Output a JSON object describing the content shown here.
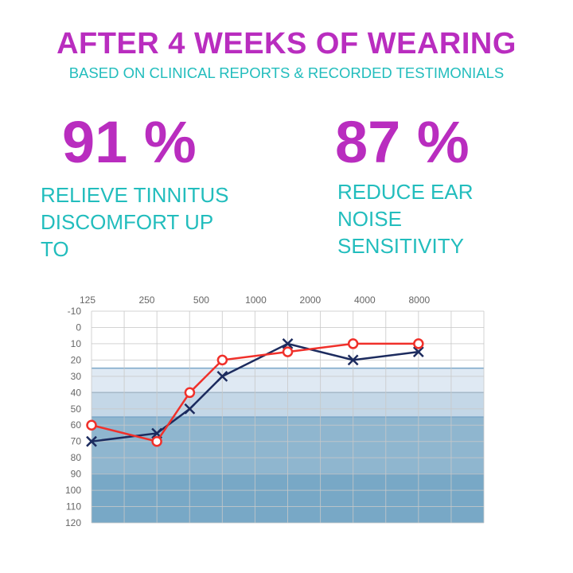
{
  "header": {
    "title": "AFTER 4 WEEKS OF WEARING",
    "subtitle": "BASED ON CLINICAL REPORTS & RECORDED TESTIMONIALS"
  },
  "stats": [
    {
      "value": "91 %",
      "lines": [
        "RELIEVE TINNITUS",
        "DISCOMFORT UP",
        "TO"
      ]
    },
    {
      "value": "87 %",
      "lines": [
        "REDUCE EAR",
        "NOISE",
        "SENSITIVITY"
      ]
    }
  ],
  "colors": {
    "accent": "#b92dbf",
    "secondary": "#22bdbd",
    "series_red": "#f0302a",
    "series_navy": "#1c2b5e"
  },
  "chart_data": {
    "type": "line",
    "title": "",
    "xlabel": "",
    "ylabel": "",
    "x_scale": "log",
    "x_ticks": [
      "125",
      "250",
      "500",
      "1000",
      "2000",
      "4000",
      "8000"
    ],
    "y_ticks": [
      "-10",
      "0",
      "10",
      "20",
      "30",
      "40",
      "50",
      "60",
      "70",
      "80",
      "90",
      "100",
      "110",
      "120"
    ],
    "ylim": [
      -10,
      120
    ],
    "y_inverted": true,
    "grid": true,
    "bands": [
      {
        "from": 25,
        "to": 40,
        "color": "#dfe9f3"
      },
      {
        "from": 40,
        "to": 55,
        "color": "#c4d7e7"
      },
      {
        "from": 55,
        "to": 90,
        "color": "#8fb6cf"
      },
      {
        "from": 90,
        "to": 120,
        "color": "#78a8c6"
      }
    ],
    "series": [
      {
        "marker": "circle",
        "color": "#f0302a",
        "x": [
          125,
          287,
          436,
          660,
          1516,
          3482,
          8000
        ],
        "y": [
          60,
          70,
          40,
          20,
          15,
          10,
          10
        ]
      },
      {
        "marker": "x",
        "color": "#1c2b5e",
        "x": [
          125,
          287,
          436,
          660,
          1516,
          3482,
          8000
        ],
        "y": [
          70,
          65,
          50,
          30,
          10,
          20,
          15
        ]
      }
    ]
  }
}
